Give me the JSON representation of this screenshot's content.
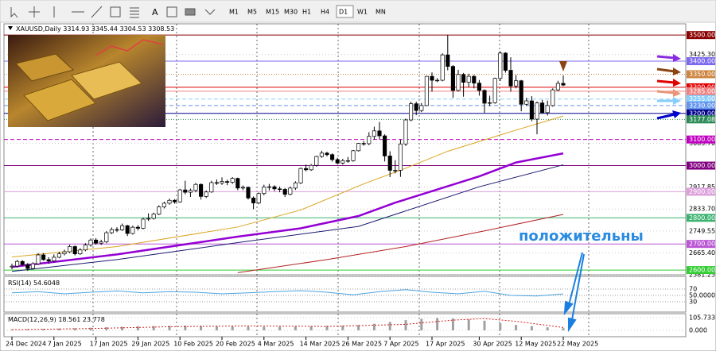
{
  "toolbar": {
    "timeframes": [
      "M1",
      "M5",
      "M15",
      "M30",
      "H1",
      "H4",
      "D1",
      "W1",
      "MN"
    ],
    "active_index": 6
  },
  "chart_data": {
    "type": "candlestick",
    "title": "XAUUSD,Daily",
    "annotation": "положительны",
    "up_color": "#ffffff",
    "down_color": "#000000",
    "grid": true,
    "ylim": [
      2585,
      3537
    ],
    "yticks": [
      {
        "value": 3425.3,
        "label": "3425.30"
      },
      {
        "value": 3085.7,
        "label": "3085.70"
      },
      {
        "value": 2917.85,
        "label": "2917.85"
      },
      {
        "value": 2833.7,
        "label": "2833.70"
      },
      {
        "value": 2749.55,
        "label": "2749.55"
      },
      {
        "value": 2665.4,
        "label": "2665.40"
      },
      {
        "value": 2581.25,
        "label": "2581.25"
      }
    ],
    "levels": [
      {
        "value": 3500,
        "label": "3500.00",
        "color": "#8b0000",
        "style": "solid"
      },
      {
        "value": 3400,
        "label": "3400.00",
        "color": "#7b68ee",
        "style": "solid"
      },
      {
        "value": 3350,
        "label": "3350.00",
        "color": "#cd853f",
        "style": "dotted"
      },
      {
        "value": 3300,
        "label": "3300.00",
        "color": "#e00000",
        "style": "solid"
      },
      {
        "value": 3285,
        "label": "3285.00",
        "color": "#f08080",
        "style": "solid"
      },
      {
        "value": 3255,
        "label": "3255.00",
        "color": "#87cefa",
        "style": "dashed"
      },
      {
        "value": 3230,
        "label": "3230.00",
        "color": "#6495ed",
        "style": "dashed"
      },
      {
        "value": 3200,
        "label": "3200.00",
        "color": "#00008b",
        "style": "solid"
      },
      {
        "value": 3177.08,
        "label": "3177.08",
        "color": "#2e8b57",
        "style": "dotted"
      },
      {
        "value": 3100,
        "label": "3100.00",
        "color": "#c000c0",
        "style": "dashed"
      },
      {
        "value": 3000,
        "label": "3000.00",
        "color": "#800080",
        "style": "solid"
      },
      {
        "value": 2900,
        "label": "2900.00",
        "color": "#dda0dd",
        "style": "solid"
      },
      {
        "value": 2800,
        "label": "2800.00",
        "color": "#3cb371",
        "style": "solid"
      },
      {
        "value": 2700,
        "label": "2700.00",
        "color": "#ba55d3",
        "style": "solid"
      },
      {
        "value": 2600,
        "label": "2600.00",
        "color": "#32cd32",
        "style": "solid"
      }
    ],
    "categories": [
      "24 Dec 2024",
      null,
      null,
      null,
      null,
      null,
      null,
      null,
      "7 Jan 2025",
      null,
      null,
      null,
      null,
      null,
      null,
      null,
      "17 Jan 2025",
      null,
      null,
      null,
      null,
      null,
      null,
      null,
      "29 Jan 2025",
      null,
      null,
      null,
      null,
      null,
      null,
      null,
      "10 Feb 2025",
      null,
      null,
      null,
      null,
      null,
      null,
      null,
      "20 Feb 2025",
      null,
      null,
      null,
      null,
      null,
      null,
      null,
      "4 Mar 2025",
      null,
      null,
      null,
      null,
      null,
      null,
      null,
      "14 Mar 2025",
      null,
      null,
      null,
      null,
      null,
      null,
      null,
      "26 Mar 2025",
      null,
      null,
      null,
      null,
      null,
      null,
      null,
      "7 Apr 2025",
      null,
      null,
      null,
      null,
      null,
      null,
      null,
      "17 Apr 2025",
      null,
      null,
      null,
      null,
      null,
      null,
      null,
      null,
      "30 Apr 2025",
      null,
      null,
      null,
      null,
      null,
      null,
      null,
      "12 May 2025",
      null,
      null,
      null,
      null,
      null,
      null,
      null,
      "22 May 2025"
    ],
    "open": [
      2612,
      2615,
      2633,
      2621,
      2606,
      2624,
      2658,
      2640,
      2635,
      2649,
      2662,
      2670,
      2690,
      2662,
      2677,
      2696,
      2715,
      2703,
      2708,
      2743,
      2755,
      2754,
      2770,
      2740,
      2764,
      2760,
      2795,
      2798,
      2814,
      2842,
      2856,
      2867,
      2861,
      2907,
      2898,
      2905,
      2928,
      2882,
      2899,
      2935,
      2933,
      2939,
      2936,
      2951,
      2914,
      2917,
      2876,
      2857,
      2893,
      2918,
      2919,
      2911,
      2909,
      2890,
      2914,
      2934,
      2989,
      2984,
      3001,
      3035,
      3048,
      3042,
      3023,
      3010,
      3019,
      3019,
      3057,
      3085,
      3084,
      3112,
      3133,
      3114,
      3037,
      2982,
      2982,
      3083,
      3175,
      3237,
      3211,
      3230,
      3342,
      3327,
      3327,
      3424,
      3380,
      3288,
      3349,
      3319,
      3342,
      3316,
      3288,
      3239,
      3241,
      3334,
      3431,
      3365,
      3305,
      3325,
      3235,
      3248,
      3178,
      3240,
      3203,
      3230,
      3290,
      3314.93
    ],
    "high": [
      2624,
      2639,
      2638,
      2627,
      2630,
      2665,
      2665,
      2649,
      2660,
      2670,
      2678,
      2697,
      2694,
      2684,
      2703,
      2721,
      2722,
      2716,
      2749,
      2763,
      2764,
      2778,
      2773,
      2770,
      2772,
      2800,
      2817,
      2820,
      2848,
      2862,
      2874,
      2872,
      2911,
      2942,
      2912,
      2934,
      2932,
      2905,
      2942,
      2947,
      2955,
      2946,
      2956,
      2954,
      2924,
      2920,
      2882,
      2897,
      2927,
      2930,
      2925,
      2920,
      2914,
      2920,
      2940,
      2993,
      3004,
      3006,
      3038,
      3057,
      3053,
      3047,
      3030,
      3026,
      3033,
      3060,
      3087,
      3094,
      3128,
      3149,
      3167,
      3120,
      3055,
      3021,
      3100,
      3180,
      3245,
      3245,
      3240,
      3344,
      3357,
      3335,
      3430,
      3500,
      3385,
      3367,
      3355,
      3352,
      3347,
      3328,
      3292,
      3268,
      3337,
      3438,
      3434,
      3415,
      3347,
      3328,
      3260,
      3266,
      3245,
      3252,
      3249,
      3296,
      3325,
      3345.44
    ],
    "low": [
      2603,
      2610,
      2615,
      2597,
      2602,
      2620,
      2636,
      2624,
      2630,
      2645,
      2656,
      2665,
      2656,
      2658,
      2672,
      2690,
      2697,
      2696,
      2703,
      2738,
      2745,
      2750,
      2730,
      2736,
      2752,
      2756,
      2788,
      2793,
      2810,
      2836,
      2850,
      2854,
      2858,
      2890,
      2880,
      2898,
      2870,
      2876,
      2896,
      2926,
      2926,
      2925,
      2930,
      2906,
      2906,
      2870,
      2833,
      2852,
      2886,
      2905,
      2902,
      2898,
      2880,
      2886,
      2907,
      2930,
      2978,
      2980,
      2996,
      3030,
      3035,
      3015,
      3005,
      3004,
      3011,
      3015,
      3054,
      3076,
      3078,
      3100,
      3100,
      3016,
      2956,
      2970,
      2957,
      3075,
      3170,
      3193,
      3205,
      3228,
      3283,
      3320,
      3323,
      3365,
      3260,
      3283,
      3264,
      3300,
      3296,
      3268,
      3202,
      3228,
      3237,
      3324,
      3356,
      3283,
      3296,
      3208,
      3229,
      3170,
      3120,
      3200,
      3192,
      3226,
      3285,
      3304.53
    ],
    "close": [
      2615,
      2633,
      2621,
      2606,
      2624,
      2658,
      2640,
      2635,
      2649,
      2662,
      2670,
      2690,
      2662,
      2677,
      2696,
      2715,
      2703,
      2708,
      2743,
      2755,
      2754,
      2770,
      2740,
      2764,
      2760,
      2795,
      2798,
      2814,
      2842,
      2856,
      2867,
      2861,
      2907,
      2898,
      2905,
      2928,
      2882,
      2899,
      2935,
      2933,
      2939,
      2936,
      2951,
      2914,
      2917,
      2876,
      2857,
      2893,
      2918,
      2919,
      2911,
      2909,
      2890,
      2914,
      2934,
      2989,
      2984,
      3001,
      3035,
      3048,
      3042,
      3023,
      3010,
      3019,
      3019,
      3057,
      3085,
      3084,
      3112,
      3133,
      3114,
      3037,
      2982,
      2982,
      3083,
      3175,
      3237,
      3211,
      3230,
      3342,
      3327,
      3327,
      3424,
      3380,
      3288,
      3349,
      3319,
      3342,
      3316,
      3288,
      3239,
      3241,
      3334,
      3431,
      3365,
      3305,
      3325,
      3235,
      3248,
      3178,
      3240,
      3203,
      3230,
      3290,
      3314.93,
      3308.53
    ],
    "moving_averages": [
      {
        "color": "#daa520",
        "width": 1,
        "x": [
          0,
          20,
          43,
          55,
          67,
          75,
          83,
          95,
          105
        ],
        "values": [
          2650,
          2690,
          2765,
          2830,
          2930,
          2990,
          3055,
          3130,
          3190
        ]
      },
      {
        "color": "#9400d3",
        "width": 2.5,
        "x": [
          0,
          20,
          43,
          55,
          66,
          73,
          89,
          96,
          105
        ],
        "values": [
          2612,
          2660,
          2728,
          2760,
          2807,
          2858,
          2959,
          3012,
          3047
        ]
      },
      {
        "color": "#191970",
        "width": 1,
        "x": [
          0,
          20,
          43,
          66,
          89,
          105
        ],
        "values": [
          2595,
          2640,
          2705,
          2767,
          2919,
          3003
        ]
      },
      {
        "color": "#b22222",
        "width": 1,
        "x": [
          43,
          60,
          75,
          90,
          105
        ],
        "values": [
          2590,
          2640,
          2690,
          2750,
          2813
        ]
      }
    ],
    "rsi": {
      "label": "RSI(14)",
      "color": "#4aa3df",
      "ylim": [
        0,
        100
      ],
      "yticks": [
        70,
        {
          "value": 50,
          "label": "50.0000"
        },
        30
      ],
      "x": [
        0,
        5,
        10,
        15,
        20,
        25,
        30,
        35,
        40,
        45,
        50,
        55,
        60,
        65,
        70,
        75,
        80,
        85,
        90,
        95,
        100,
        105
      ],
      "values": [
        58,
        62,
        55,
        60,
        64,
        58,
        62,
        60,
        55,
        58,
        62,
        65,
        60,
        52,
        62,
        68,
        60,
        55,
        63,
        50,
        48,
        54.6048
      ]
    },
    "macd": {
      "label": "MACD(12,26,9)",
      "hist_color": "#a0a0a0",
      "signal_color": "#d02020",
      "ylim": [
        -53,
        132
      ],
      "yticks": [
        105.733,
        {
          "value": 0,
          "label": "0.000"
        }
      ],
      "x": [
        0,
        3,
        6,
        9,
        12,
        15,
        18,
        21,
        24,
        27,
        30,
        33,
        36,
        39,
        42,
        45,
        48,
        51,
        54,
        57,
        60,
        63,
        66,
        69,
        72,
        75,
        78,
        81,
        84,
        87,
        90,
        93,
        96,
        99,
        102,
        105
      ],
      "values": [
        8,
        10,
        12,
        15,
        18,
        22,
        26,
        30,
        34,
        36,
        38,
        40,
        38,
        36,
        34,
        32,
        30,
        30,
        32,
        35,
        38,
        40,
        45,
        55,
        70,
        85,
        95,
        102,
        98,
        90,
        80,
        60,
        45,
        35,
        25,
        18.561
      ],
      "signal_x": [
        0,
        15,
        30,
        45,
        60,
        75,
        84,
        90,
        96,
        105
      ],
      "signal": [
        5,
        15,
        30,
        37,
        32,
        50,
        85,
        98,
        75,
        23.778
      ]
    }
  }
}
